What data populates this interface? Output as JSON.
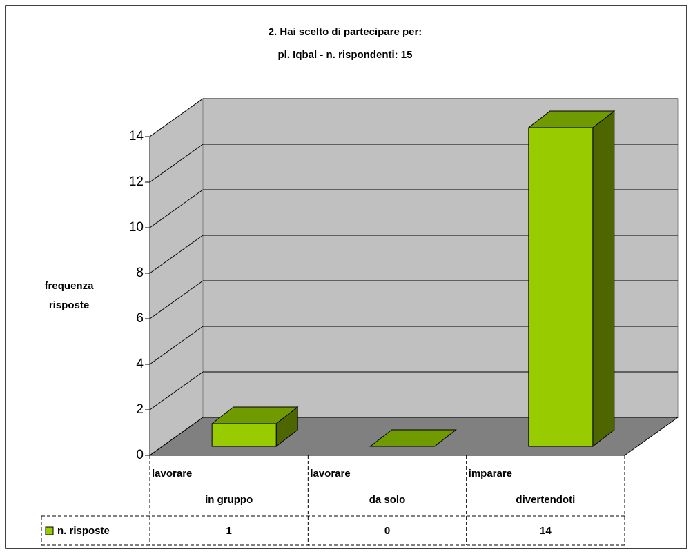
{
  "chart_data": {
    "type": "bar3d",
    "title": [
      "2. Hai scelto di partecipare per:",
      "pl. Iqbal - n. rispondenti: 15"
    ],
    "y_label": [
      "frequenza",
      "risposte"
    ],
    "categories": [
      [
        "lavorare",
        "in gruppo"
      ],
      [
        "lavorare",
        "da solo"
      ],
      [
        "imparare",
        "divertendoti"
      ]
    ],
    "series": [
      {
        "name": "n. risposte",
        "color": "#99cc00",
        "values": [
          1,
          0,
          14
        ]
      }
    ],
    "ylim": [
      0,
      14
    ],
    "yticks": [
      0,
      2,
      4,
      6,
      8,
      10,
      12,
      14
    ],
    "grid": true,
    "data_table": true
  }
}
